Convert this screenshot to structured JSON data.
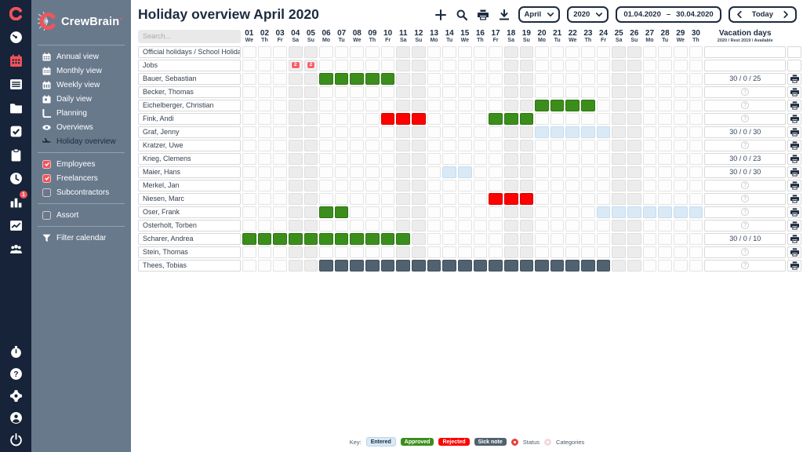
{
  "app": {
    "name": "CrewBrain"
  },
  "header": {
    "title": "Holiday overview April 2020",
    "month_select": "April",
    "year_select": "2020",
    "date_from": "01.04.2020",
    "date_separator": "–",
    "date_to": "30.04.2020",
    "today_label": "Today"
  },
  "sidebar": {
    "nav": [
      {
        "label": "Annual view",
        "icon": "calendar-annual-icon"
      },
      {
        "label": "Monthly view",
        "icon": "calendar-month-icon"
      },
      {
        "label": "Weekly view",
        "icon": "calendar-week-icon"
      },
      {
        "label": "Daily view",
        "icon": "calendar-day-icon"
      },
      {
        "label": "Planning",
        "icon": "planning-icon"
      },
      {
        "label": "Overviews",
        "icon": "eye-icon"
      },
      {
        "label": "Holiday overview",
        "icon": "plane-icon"
      }
    ],
    "filters": [
      {
        "label": "Employees",
        "checked": true
      },
      {
        "label": "Freelancers",
        "checked": true
      },
      {
        "label": "Subcontractors",
        "checked": false
      }
    ],
    "assort_label": "Assort",
    "filter_calendar_label": "Filter calendar"
  },
  "notifications": {
    "reports_badge": "1"
  },
  "table": {
    "search_placeholder": "Search...",
    "vacation_header": "Vacation days",
    "vacation_subheader": "2020 / Rest 2019 / Available",
    "days": [
      {
        "num": "01",
        "dow": "We"
      },
      {
        "num": "02",
        "dow": "Th"
      },
      {
        "num": "03",
        "dow": "Fr"
      },
      {
        "num": "04",
        "dow": "Sa"
      },
      {
        "num": "05",
        "dow": "Su"
      },
      {
        "num": "06",
        "dow": "Mo"
      },
      {
        "num": "07",
        "dow": "Tu"
      },
      {
        "num": "08",
        "dow": "We"
      },
      {
        "num": "09",
        "dow": "Th"
      },
      {
        "num": "10",
        "dow": "Fr"
      },
      {
        "num": "11",
        "dow": "Sa"
      },
      {
        "num": "12",
        "dow": "Su"
      },
      {
        "num": "13",
        "dow": "Mo"
      },
      {
        "num": "14",
        "dow": "Tu"
      },
      {
        "num": "15",
        "dow": "We"
      },
      {
        "num": "16",
        "dow": "Th"
      },
      {
        "num": "17",
        "dow": "Fr"
      },
      {
        "num": "18",
        "dow": "Sa"
      },
      {
        "num": "19",
        "dow": "Su"
      },
      {
        "num": "20",
        "dow": "Mo"
      },
      {
        "num": "21",
        "dow": "Tu"
      },
      {
        "num": "22",
        "dow": "We"
      },
      {
        "num": "23",
        "dow": "Th"
      },
      {
        "num": "24",
        "dow": "Fr"
      },
      {
        "num": "25",
        "dow": "Sa"
      },
      {
        "num": "26",
        "dow": "Su"
      },
      {
        "num": "27",
        "dow": "Mo"
      },
      {
        "num": "28",
        "dow": "Tu"
      },
      {
        "num": "29",
        "dow": "We"
      },
      {
        "num": "30",
        "dow": "Th"
      }
    ],
    "rows": [
      {
        "name": "Official holidays / School Holidays",
        "printable": false,
        "vacation": null,
        "spans": [],
        "badges": []
      },
      {
        "name": "Jobs",
        "printable": false,
        "vacation": null,
        "spans": [],
        "badges": [
          {
            "day": 4,
            "label": "2"
          },
          {
            "day": 5,
            "label": "2"
          }
        ]
      },
      {
        "name": "Bauer, Sebastian",
        "printable": true,
        "vacation": "30 / 0 / 25",
        "spans": [
          {
            "start": 6,
            "end": 10,
            "status": "approved"
          }
        ],
        "badges": []
      },
      {
        "name": "Becker, Thomas",
        "printable": true,
        "vacation": null,
        "spans": [],
        "badges": []
      },
      {
        "name": "Eichelberger, Christian",
        "printable": true,
        "vacation": null,
        "spans": [
          {
            "start": 20,
            "end": 23,
            "status": "approved"
          }
        ],
        "badges": []
      },
      {
        "name": "Fink, Andi",
        "printable": true,
        "vacation": null,
        "spans": [
          {
            "start": 10,
            "end": 12,
            "status": "rejected"
          },
          {
            "start": 17,
            "end": 19,
            "status": "approved"
          }
        ],
        "badges": []
      },
      {
        "name": "Graf, Jenny",
        "printable": true,
        "vacation": "30 / 0 / 30",
        "spans": [
          {
            "start": 20,
            "end": 24,
            "status": "entered"
          }
        ],
        "badges": []
      },
      {
        "name": "Kratzer, Uwe",
        "printable": true,
        "vacation": null,
        "spans": [],
        "badges": []
      },
      {
        "name": "Krieg, Clemens",
        "printable": true,
        "vacation": "30 / 0 / 23",
        "spans": [],
        "badges": []
      },
      {
        "name": "Maier, Hans",
        "printable": true,
        "vacation": "30 / 0 / 30",
        "spans": [
          {
            "start": 14,
            "end": 15,
            "status": "entered"
          }
        ],
        "badges": []
      },
      {
        "name": "Merkel, Jan",
        "printable": true,
        "vacation": null,
        "spans": [],
        "badges": []
      },
      {
        "name": "Niesen, Marc",
        "printable": true,
        "vacation": null,
        "spans": [
          {
            "start": 17,
            "end": 19,
            "status": "rejected"
          }
        ],
        "badges": []
      },
      {
        "name": "Oser, Frank",
        "printable": true,
        "vacation": null,
        "spans": [
          {
            "start": 6,
            "end": 7,
            "status": "approved"
          },
          {
            "start": 24,
            "end": 30,
            "status": "entered"
          }
        ],
        "badges": []
      },
      {
        "name": "Osterholt, Torben",
        "printable": true,
        "vacation": null,
        "spans": [],
        "badges": []
      },
      {
        "name": "Scharer, Andrea",
        "printable": true,
        "vacation": "30 / 0 / 10",
        "spans": [
          {
            "start": 1,
            "end": 11,
            "status": "approved"
          }
        ],
        "badges": []
      },
      {
        "name": "Stein, Thomas",
        "printable": true,
        "vacation": null,
        "spans": [],
        "badges": []
      },
      {
        "name": "Thees, Tobias",
        "printable": true,
        "vacation": null,
        "spans": [
          {
            "start": 6,
            "end": 24,
            "status": "sick"
          }
        ],
        "badges": []
      }
    ],
    "weekend_days": [
      4,
      5,
      11,
      12,
      18,
      19,
      25,
      26
    ]
  },
  "legend": {
    "key_label": "Key:",
    "items": [
      {
        "label": "Entered",
        "type": "entered"
      },
      {
        "label": "Approved",
        "type": "approved"
      },
      {
        "label": "Rejected",
        "type": "rejected"
      },
      {
        "label": "Sick note",
        "type": "sick"
      }
    ],
    "status_label": "Status",
    "categories_label": "Categories"
  },
  "colors": {
    "approved": "#3c8e1c",
    "rejected": "#fd0000",
    "entered": "#d9e9f6",
    "sick": "#50616f",
    "accent_red": "#f0545c",
    "navy": "#1d2b3f",
    "sidebar": "#68798c",
    "iconbar": "#162339",
    "weekend": "#ececec"
  }
}
